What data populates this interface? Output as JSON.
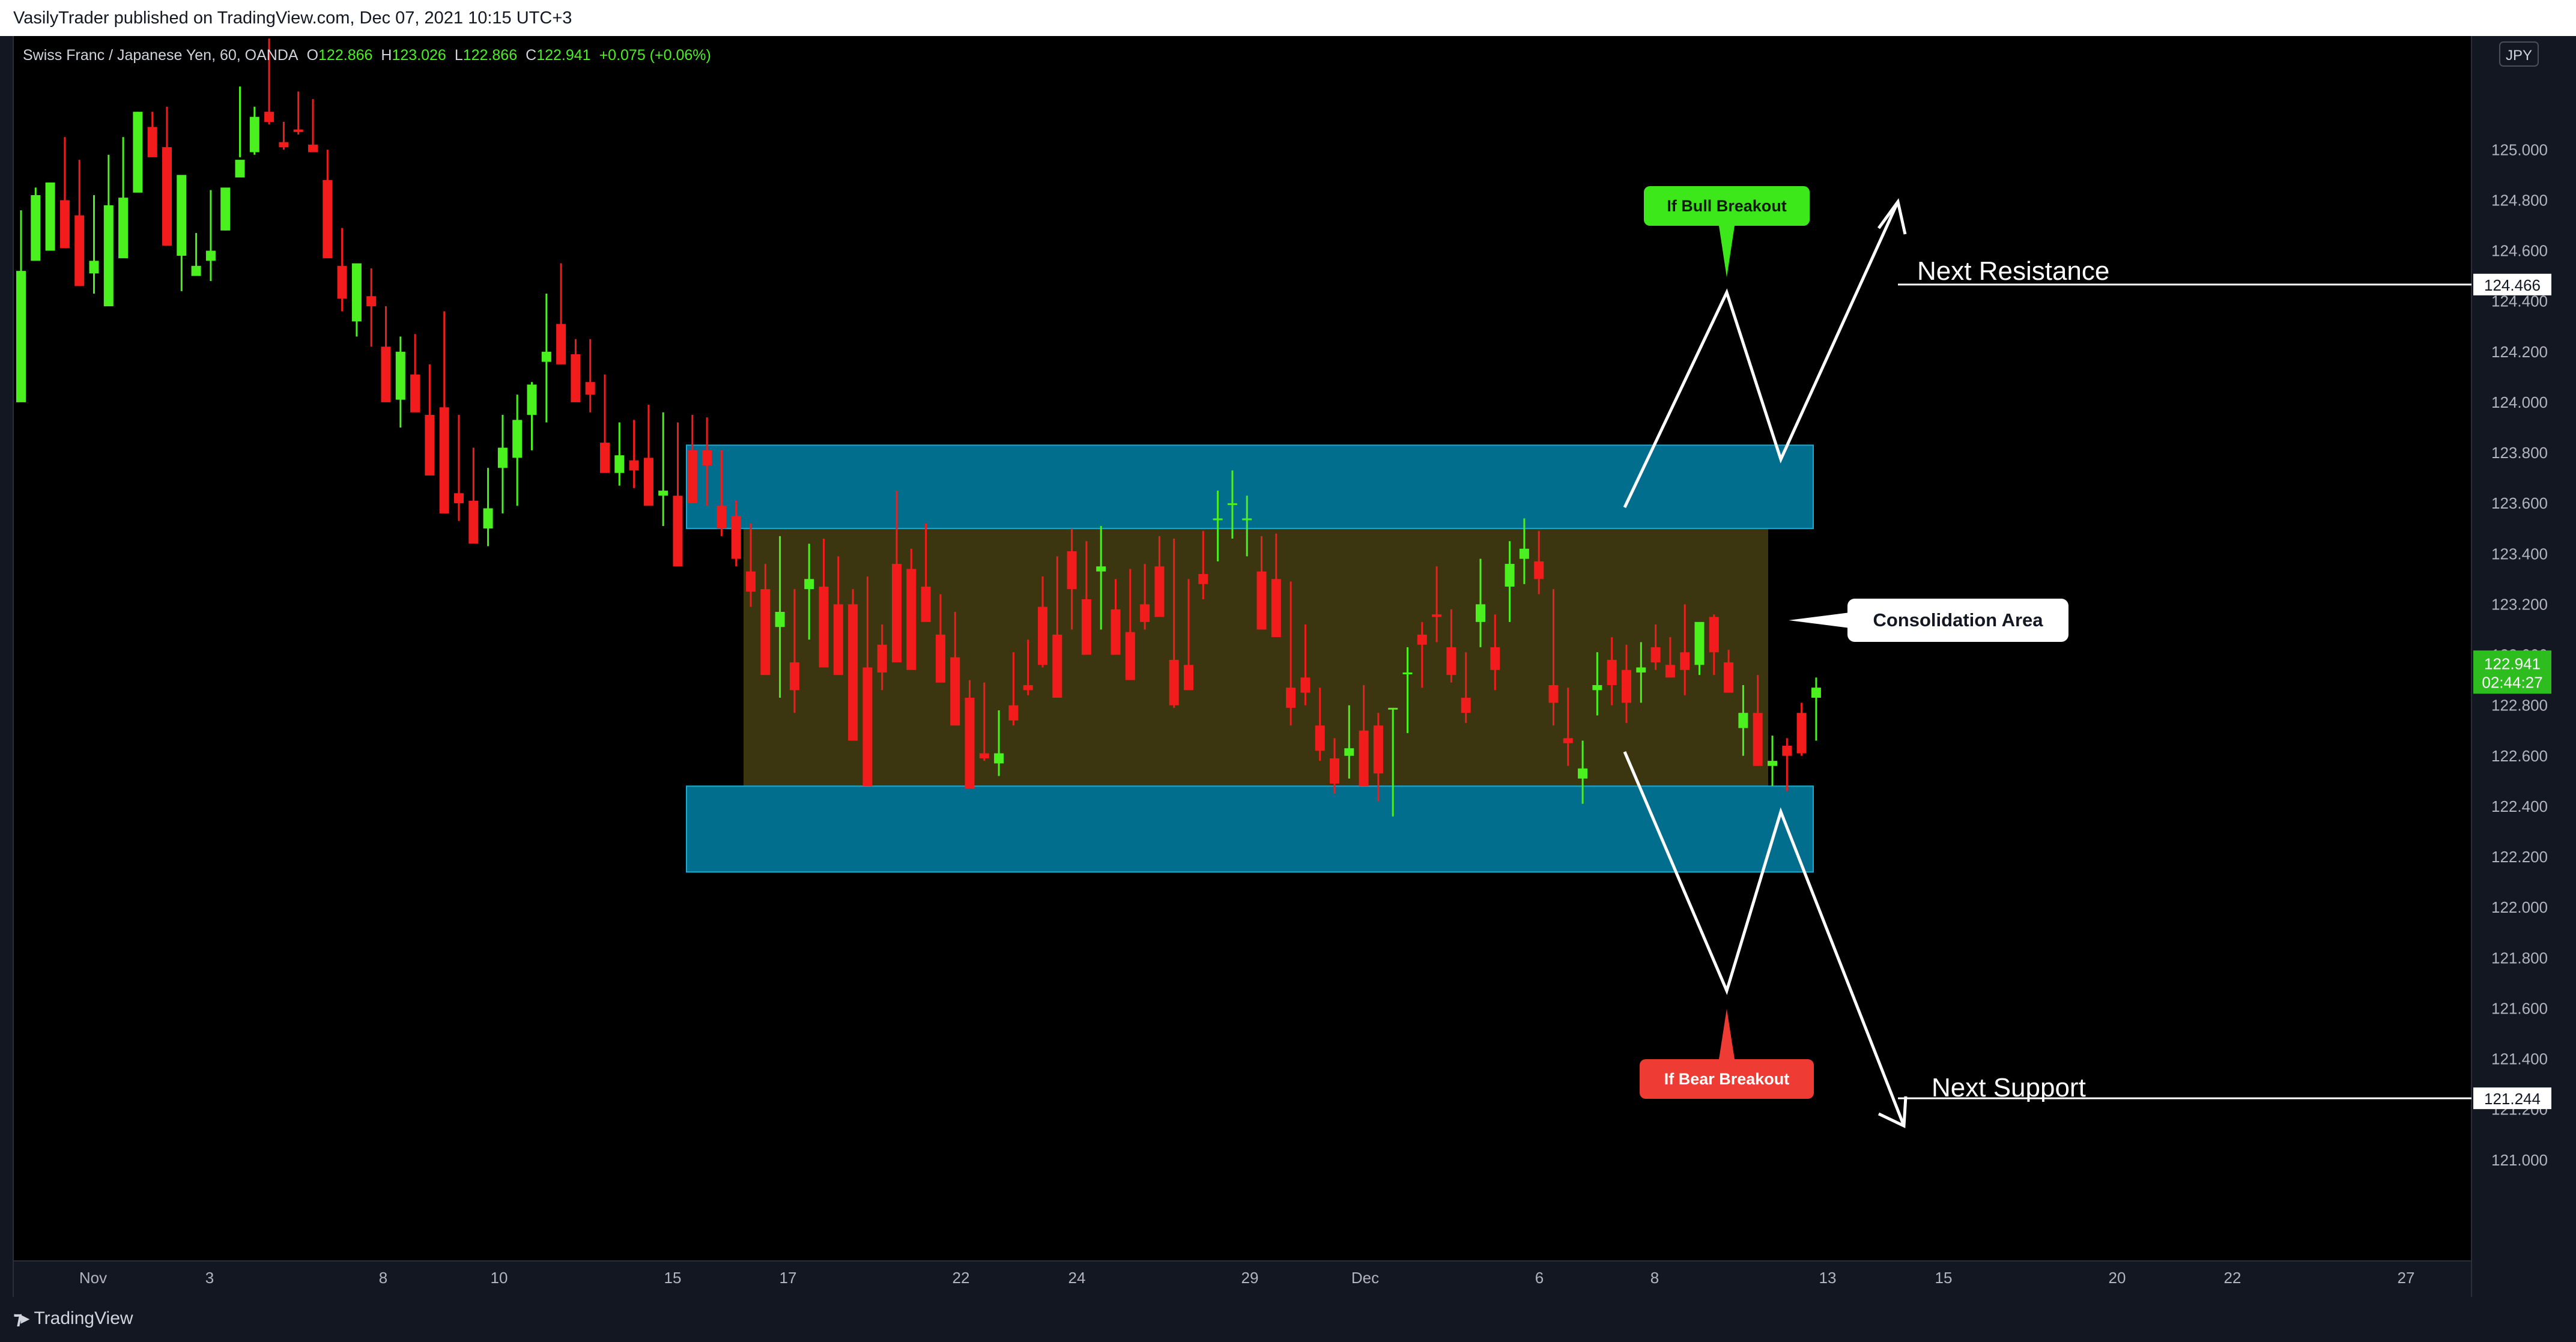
{
  "header": {
    "published_line": "VasilyTrader published on TradingView.com, Dec 07, 2021 10:15 UTC+3"
  },
  "legend": {
    "symbol": "Swiss Franc / Japanese Yen, 60, OANDA",
    "open_label": "O",
    "open": "122.866",
    "high_label": "H",
    "high": "123.026",
    "low_label": "L",
    "low": "122.866",
    "close_label": "C",
    "close": "122.941",
    "change": "+0.075 (+0.06%)"
  },
  "currency_badge": "JPY",
  "footer": {
    "brand": "TradingView"
  },
  "colors": {
    "background": "#000000",
    "up": "#4bf01f",
    "down": "#f21c1c",
    "zone_blue": "#006e8c",
    "consolidation": "#3b3610",
    "bull_badge": "#3ce81a",
    "bear_badge": "#ee3b33",
    "price_badge": "#2ebd1f"
  },
  "chart_data": {
    "type": "candlestick",
    "ylim": [
      120.6,
      125.45
    ],
    "y_ticks": [
      "121.000",
      "121.200",
      "121.400",
      "121.600",
      "121.800",
      "122.000",
      "122.200",
      "122.400",
      "122.600",
      "122.800",
      "123.000",
      "123.200",
      "123.400",
      "123.600",
      "123.800",
      "124.000",
      "124.200",
      "124.400",
      "124.600",
      "124.800",
      "125.000"
    ],
    "x_ticks": [
      "Nov",
      "3",
      "8",
      "10",
      "15",
      "17",
      "22",
      "24",
      "29",
      "Dec",
      "6",
      "8",
      "13",
      "15",
      "20",
      "22",
      "27"
    ],
    "current_price": "122.941",
    "countdown": "02:44:27",
    "candles": [
      [
        124.0,
        124.3,
        124.76,
        124.52
      ],
      [
        124.56,
        124.62,
        124.85,
        124.82
      ],
      [
        124.6,
        124.65,
        124.77,
        124.87
      ],
      [
        124.8,
        124.71,
        125.05,
        124.61
      ],
      [
        124.74,
        124.64,
        124.96,
        124.46
      ],
      [
        124.51,
        124.43,
        124.82,
        124.56
      ],
      [
        124.38,
        124.55,
        124.98,
        124.78
      ],
      [
        124.57,
        124.62,
        125.05,
        124.81
      ],
      [
        124.83,
        124.92,
        125.15,
        125.15
      ],
      [
        125.09,
        125.06,
        125.15,
        124.97
      ],
      [
        125.01,
        124.83,
        125.17,
        124.62
      ],
      [
        124.58,
        124.44,
        124.85,
        124.9
      ],
      [
        124.5,
        124.52,
        124.67,
        124.54
      ],
      [
        124.56,
        124.48,
        124.84,
        124.6
      ],
      [
        124.68,
        124.68,
        124.79,
        124.85
      ],
      [
        124.89,
        124.97,
        125.25,
        124.96
      ],
      [
        124.99,
        124.98,
        125.17,
        125.13
      ],
      [
        125.15,
        125.1,
        125.44,
        125.11
      ],
      [
        125.03,
        125.0,
        125.11,
        125.01
      ],
      [
        125.08,
        125.06,
        125.23,
        125.07
      ],
      [
        125.02,
        125.0,
        125.2,
        124.99
      ],
      [
        124.88,
        124.86,
        125.0,
        124.57
      ],
      [
        124.54,
        124.36,
        124.69,
        124.41
      ],
      [
        124.32,
        124.26,
        124.54,
        124.55
      ],
      [
        124.42,
        124.22,
        124.53,
        124.38
      ],
      [
        124.22,
        124.01,
        124.38,
        124.0
      ],
      [
        124.01,
        123.9,
        124.26,
        124.2
      ],
      [
        124.11,
        124.08,
        124.27,
        123.96
      ],
      [
        123.95,
        123.78,
        124.15,
        123.71
      ],
      [
        123.98,
        123.73,
        124.36,
        123.56
      ],
      [
        123.64,
        123.53,
        123.95,
        123.6
      ],
      [
        123.61,
        123.46,
        123.82,
        123.44
      ],
      [
        123.5,
        123.43,
        123.74,
        123.58
      ],
      [
        123.74,
        123.56,
        123.95,
        123.82
      ],
      [
        123.78,
        123.59,
        124.03,
        123.93
      ],
      [
        123.95,
        123.81,
        124.08,
        124.07
      ],
      [
        124.16,
        123.92,
        124.43,
        124.2
      ],
      [
        124.31,
        124.15,
        124.55,
        124.15
      ],
      [
        124.19,
        124.08,
        124.25,
        124.0
      ],
      [
        124.08,
        123.96,
        124.25,
        124.03
      ],
      [
        123.84,
        123.77,
        124.11,
        123.72
      ],
      [
        123.72,
        123.67,
        123.92,
        123.79
      ],
      [
        123.77,
        123.66,
        123.93,
        123.73
      ],
      [
        123.78,
        123.62,
        123.99,
        123.59
      ],
      [
        123.63,
        123.51,
        123.96,
        123.65
      ],
      [
        123.63,
        123.51,
        123.92,
        123.35
      ],
      [
        123.81,
        123.63,
        123.95,
        123.6
      ],
      [
        123.81,
        123.59,
        123.94,
        123.75
      ],
      [
        123.59,
        123.47,
        123.81,
        123.5
      ],
      [
        123.55,
        123.35,
        123.61,
        123.38
      ],
      [
        123.33,
        123.19,
        123.52,
        123.25
      ],
      [
        123.26,
        123.16,
        123.36,
        122.92
      ],
      [
        123.11,
        122.83,
        123.47,
        123.17
      ],
      [
        122.97,
        122.77,
        123.26,
        122.86
      ],
      [
        123.26,
        123.06,
        123.44,
        123.3
      ],
      [
        123.27,
        123.18,
        123.46,
        122.95
      ],
      [
        123.2,
        123.09,
        123.39,
        122.92
      ],
      [
        123.2,
        123.0,
        123.26,
        122.66
      ],
      [
        122.95,
        122.87,
        123.31,
        122.48
      ],
      [
        123.04,
        122.86,
        123.12,
        122.93
      ],
      [
        123.36,
        123.22,
        123.65,
        122.97
      ],
      [
        123.34,
        123.27,
        123.42,
        122.94
      ],
      [
        123.27,
        123.18,
        123.52,
        123.13
      ],
      [
        123.08,
        122.98,
        123.24,
        122.89
      ],
      [
        122.99,
        122.82,
        123.17,
        122.72
      ],
      [
        122.83,
        122.7,
        122.9,
        122.47
      ],
      [
        122.61,
        122.58,
        122.89,
        122.59
      ],
      [
        122.57,
        122.52,
        122.78,
        122.61
      ],
      [
        122.8,
        122.72,
        123.01,
        122.74
      ],
      [
        122.88,
        122.84,
        123.06,
        122.86
      ],
      [
        123.19,
        122.95,
        123.31,
        122.96
      ],
      [
        123.08,
        122.87,
        123.39,
        122.83
      ],
      [
        123.41,
        123.1,
        123.5,
        123.26
      ],
      [
        123.22,
        123.0,
        123.45,
        123.0
      ],
      [
        123.33,
        123.1,
        123.51,
        123.35
      ],
      [
        123.18,
        123.09,
        123.3,
        123.0
      ],
      [
        123.09,
        123.02,
        123.34,
        122.9
      ],
      [
        123.2,
        123.1,
        123.36,
        123.13
      ],
      [
        123.35,
        123.28,
        123.47,
        123.15
      ],
      [
        122.98,
        122.79,
        123.46,
        122.8
      ],
      [
        122.96,
        122.87,
        123.3,
        122.86
      ],
      [
        123.32,
        123.22,
        123.49,
        123.28
      ],
      [
        123.54,
        123.37,
        123.65,
        123.54
      ],
      [
        123.6,
        123.46,
        123.73,
        123.6
      ],
      [
        123.54,
        123.39,
        123.63,
        123.54
      ],
      [
        123.33,
        123.21,
        123.47,
        123.1
      ],
      [
        123.3,
        123.11,
        123.48,
        123.07
      ],
      [
        122.87,
        122.72,
        123.29,
        122.79
      ],
      [
        122.91,
        122.8,
        123.12,
        122.85
      ],
      [
        122.72,
        122.58,
        122.87,
        122.62
      ],
      [
        122.59,
        122.45,
        122.67,
        122.49
      ],
      [
        122.6,
        122.51,
        122.8,
        122.63
      ],
      [
        122.7,
        122.62,
        122.88,
        122.48
      ],
      [
        122.72,
        122.42,
        122.77,
        122.53
      ],
      [
        122.79,
        122.36,
        122.79,
        122.79
      ],
      [
        122.93,
        122.69,
        123.03,
        122.93
      ],
      [
        123.08,
        122.87,
        123.13,
        123.04
      ],
      [
        123.16,
        123.05,
        123.35,
        123.15
      ],
      [
        123.03,
        122.89,
        123.18,
        122.92
      ],
      [
        122.83,
        122.73,
        123.01,
        122.77
      ],
      [
        123.13,
        123.03,
        123.38,
        123.2
      ],
      [
        123.03,
        122.86,
        123.16,
        122.94
      ],
      [
        123.27,
        123.13,
        123.45,
        123.36
      ],
      [
        123.38,
        123.28,
        123.54,
        123.42
      ],
      [
        123.37,
        123.24,
        123.49,
        123.3
      ],
      [
        122.88,
        122.72,
        123.26,
        122.81
      ],
      [
        122.67,
        122.56,
        122.87,
        122.65
      ],
      [
        122.51,
        122.41,
        122.66,
        122.55
      ],
      [
        122.86,
        122.76,
        123.01,
        122.88
      ],
      [
        122.98,
        122.8,
        123.07,
        122.88
      ],
      [
        122.94,
        122.73,
        123.04,
        122.81
      ],
      [
        122.93,
        122.81,
        123.05,
        122.95
      ],
      [
        123.03,
        122.94,
        123.12,
        122.97
      ],
      [
        122.96,
        122.91,
        123.07,
        122.91
      ],
      [
        123.01,
        122.84,
        123.2,
        122.94
      ],
      [
        122.96,
        122.92,
        123.05,
        123.13
      ],
      [
        123.15,
        122.92,
        123.16,
        123.01
      ],
      [
        122.97,
        122.86,
        123.02,
        122.85
      ],
      [
        122.71,
        122.6,
        122.88,
        122.77
      ],
      [
        122.77,
        122.67,
        122.92,
        122.56
      ],
      [
        122.56,
        122.48,
        122.68,
        122.58
      ],
      [
        122.64,
        122.46,
        122.67,
        122.6
      ],
      [
        122.77,
        122.6,
        122.81,
        122.61
      ],
      [
        122.83,
        122.66,
        122.91,
        122.87
      ]
    ],
    "zones": [
      {
        "name": "upper-zone",
        "top": 123.83,
        "bottom": 123.5
      },
      {
        "name": "consolidation",
        "top": 123.5,
        "bottom": 122.48
      },
      {
        "name": "lower-zone",
        "top": 122.48,
        "bottom": 122.14
      }
    ],
    "levels": [
      {
        "name": "next-resistance",
        "value": 124.466,
        "label": "Next Resistance",
        "badge": "124.466"
      },
      {
        "name": "next-support",
        "value": 121.244,
        "label": "Next Support",
        "badge": "121.244"
      }
    ],
    "annotations": {
      "bull": "If Bull Breakout",
      "bear": "If Bear Breakout",
      "consolidation": "Consolidation Area"
    }
  }
}
